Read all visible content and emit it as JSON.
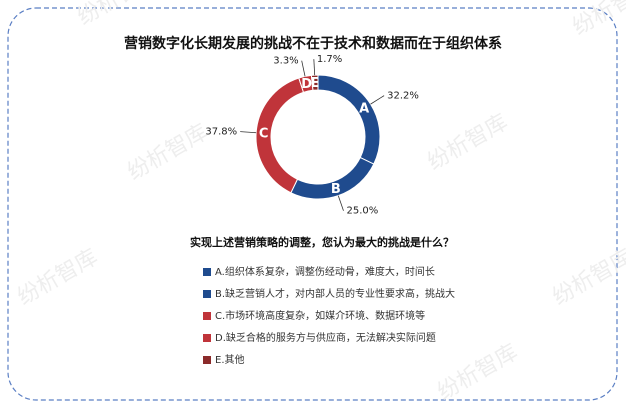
{
  "chart_data": {
    "type": "donut",
    "title": "营销数字化长期发展的挑战不在于技术和数据而在于组织体系",
    "subtitle": "实现上述营销策略的调整，您认为最大的挑战是什么？",
    "categories": [
      "A.组织体系复杂，调整伤经动骨，难度大，时间长",
      "B.缺乏营销人才，对内部人员的专业性要求高，挑战大",
      "C.市场环境高度复杂，如媒介环境、数据环境等",
      "D.缺乏合格的服务方与供应商，无法解决实际问题",
      "E.其他"
    ],
    "segment_labels": [
      "A",
      "B",
      "C",
      "D",
      "E"
    ],
    "values": [
      32.2,
      25.0,
      37.8,
      3.3,
      1.7
    ],
    "value_labels": [
      "32.2%",
      "25.0%",
      "37.8%",
      "3.3%",
      "1.7%"
    ],
    "colors": [
      "#1f4b8e",
      "#1f4b8e",
      "#c0343a",
      "#c0343a",
      "#8b2a2a"
    ],
    "watermark": "纷析智库"
  }
}
